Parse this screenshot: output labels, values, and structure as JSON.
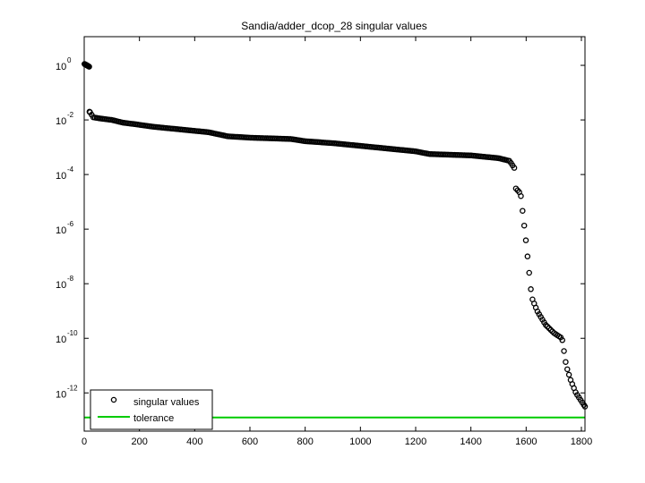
{
  "chart_data": {
    "type": "scatter",
    "title": "Sandia/adder_dcop_28 singular values",
    "xlabel": "",
    "ylabel": "",
    "xlim": [
      0,
      1813
    ],
    "ylim_log10": [
      -13.4,
      1.05
    ],
    "yscale": "log",
    "grid": false,
    "x_ticks": [
      0,
      200,
      400,
      600,
      800,
      1000,
      1200,
      1400,
      1600,
      1800
    ],
    "x_tick_labels": [
      "0",
      "200",
      "400",
      "600",
      "800",
      "1000",
      "1200",
      "1400",
      "1600",
      "1800"
    ],
    "y_ticks_exp": [
      0,
      -2,
      -4,
      -6,
      -8,
      -10,
      -12
    ],
    "y_tick_labels": [
      {
        "base": "10",
        "exp": "0"
      },
      {
        "base": "10",
        "exp": "-2"
      },
      {
        "base": "10",
        "exp": "-4"
      },
      {
        "base": "10",
        "exp": "-6"
      },
      {
        "base": "10",
        "exp": "-8"
      },
      {
        "base": "10",
        "exp": "-10"
      },
      {
        "base": "10",
        "exp": "-12"
      }
    ],
    "legend": {
      "placement": "bottom-left",
      "entries": [
        "singular values",
        "tolerance"
      ]
    },
    "colors": {
      "series": "#000000",
      "tolerance": "#00cc00",
      "axes": "#000000"
    },
    "series": [
      {
        "name": "singular values",
        "marker": "open-circle",
        "profile_log10": [
          [
            1,
            0.05
          ],
          [
            10,
            0.0
          ],
          [
            18,
            -0.05
          ],
          [
            19,
            -1.7
          ],
          [
            25,
            -1.75
          ],
          [
            30,
            -1.9
          ],
          [
            60,
            -1.95
          ],
          [
            100,
            -2.0
          ],
          [
            140,
            -2.1
          ],
          [
            180,
            -2.15
          ],
          [
            250,
            -2.25
          ],
          [
            350,
            -2.35
          ],
          [
            450,
            -2.45
          ],
          [
            520,
            -2.6
          ],
          [
            600,
            -2.65
          ],
          [
            750,
            -2.7
          ],
          [
            800,
            -2.78
          ],
          [
            900,
            -2.85
          ],
          [
            1000,
            -2.95
          ],
          [
            1100,
            -3.05
          ],
          [
            1200,
            -3.15
          ],
          [
            1250,
            -3.25
          ],
          [
            1400,
            -3.3
          ],
          [
            1500,
            -3.4
          ],
          [
            1540,
            -3.5
          ],
          [
            1560,
            -3.8
          ],
          [
            1562,
            -4.5
          ],
          [
            1580,
            -4.7
          ],
          [
            1600,
            -6.5
          ],
          [
            1620,
            -8.5
          ],
          [
            1640,
            -9.0
          ],
          [
            1670,
            -9.5
          ],
          [
            1700,
            -9.8
          ],
          [
            1730,
            -10.0
          ],
          [
            1745,
            -11.0
          ],
          [
            1760,
            -11.5
          ],
          [
            1780,
            -12.0
          ],
          [
            1813,
            -12.5
          ]
        ]
      },
      {
        "name": "tolerance",
        "type": "line",
        "y_log10": -12.9,
        "x_range": [
          0,
          1813
        ]
      }
    ]
  }
}
